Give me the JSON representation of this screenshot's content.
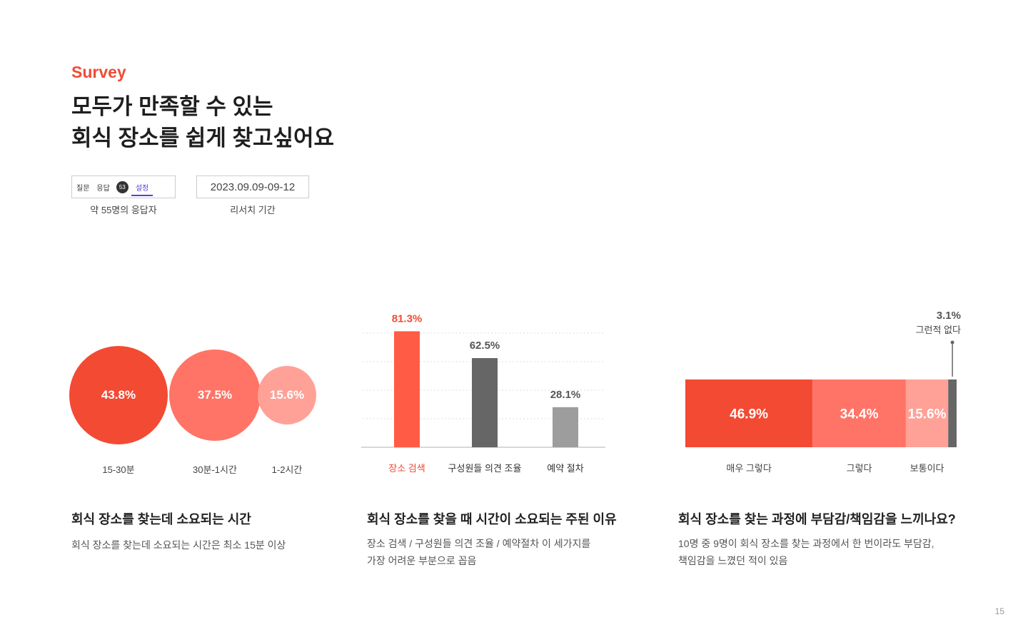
{
  "header": {
    "eyebrow": "Survey",
    "title_line1": "모두가 만족할 수 있는",
    "title_line2": "회식 장소를 쉽게 찾고싶어요"
  },
  "meta": {
    "tabs": [
      "질문",
      "응답",
      "설정"
    ],
    "response_badge": "53",
    "active_tab": "설정",
    "respondents_caption": "약 55명의 응답자",
    "date_range": "2023.09.09-09-12",
    "period_caption": "리서치 기간"
  },
  "sections": [
    {
      "title": "회식 장소를 찾는데 소요되는 시간",
      "desc_lines": [
        "회식 장소를 찾는데 소요되는 시간은 최소 15분 이상"
      ]
    },
    {
      "title": "회식 장소를 찾을 때 시간이 소요되는 주된 이유",
      "desc_lines": [
        "장소 검색 / 구성원들 의견 조율 / 예약절차 이 세가지를",
        "가장 어려운 부분으로 꼽음"
      ]
    },
    {
      "title": "회식 장소를 찾는 과정에 부담감/책임감을 느끼나요?",
      "desc_lines": [
        "10명 중 9명이 회식 장소를 찾는 과정에서 한 번이라도 부담감,",
        "책임감을 느꼈던 적이 있음"
      ]
    }
  ],
  "page_number": "15",
  "chart_data": [
    {
      "type": "bubble",
      "categories": [
        "15-30분",
        "30분-1시간",
        "1-2시간"
      ],
      "values": [
        43.8,
        37.5,
        15.6
      ],
      "value_labels": [
        "43.8%",
        "37.5%",
        "15.6%"
      ],
      "colors": [
        "#f34a33",
        "#ff7466",
        "#ffa197"
      ]
    },
    {
      "type": "bar",
      "categories": [
        "장소 검색",
        "구성원들 의견 조율",
        "예약 절차"
      ],
      "values": [
        81.3,
        62.5,
        28.1
      ],
      "value_labels": [
        "81.3%",
        "62.5%",
        "28.1%"
      ],
      "colors": [
        "#ff5b45",
        "#666666",
        "#9d9d9d"
      ],
      "highlight_index": 0,
      "ylim": [
        0,
        100
      ],
      "grid": true
    },
    {
      "type": "stacked_bar",
      "categories": [
        "매우 그렇다",
        "그렇다",
        "보통이다",
        "그런적 없다"
      ],
      "values": [
        46.9,
        34.4,
        15.6,
        3.1
      ],
      "value_labels": [
        "46.9%",
        "34.4%",
        "15.6%",
        "3.1%"
      ],
      "colors": [
        "#f34a33",
        "#ff7466",
        "#ffa197",
        "#666666"
      ]
    }
  ]
}
